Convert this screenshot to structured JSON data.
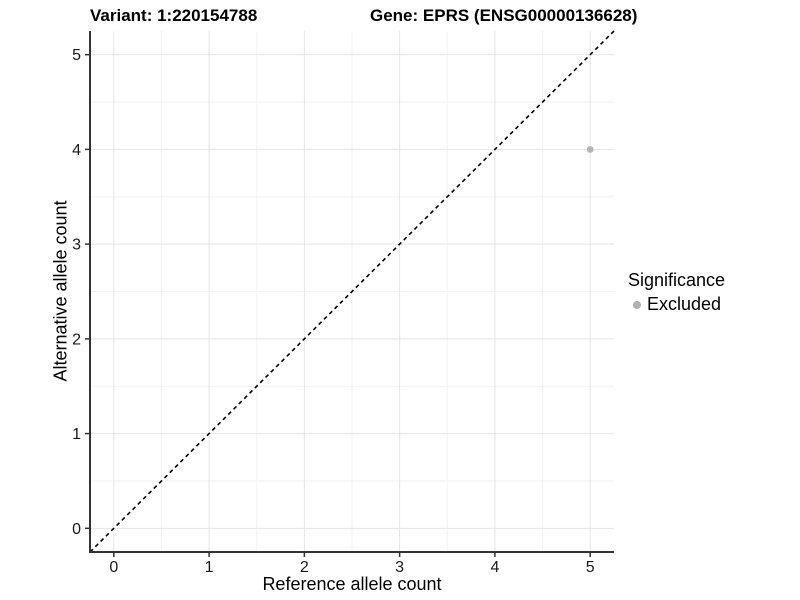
{
  "titles": {
    "variant": "Variant: 1:220154788",
    "gene": "Gene: EPRS (ENSG00000136628)"
  },
  "axes": {
    "x": {
      "label": "Reference allele count",
      "ticks": [
        0,
        1,
        2,
        3,
        4,
        5
      ]
    },
    "y": {
      "label": "Alternative allele count",
      "ticks": [
        0,
        1,
        2,
        3,
        4,
        5
      ]
    }
  },
  "legend": {
    "title": "Significance",
    "items": [
      {
        "label": "Excluded",
        "color": "#b0b0b0"
      }
    ]
  },
  "colors": {
    "background": "#ffffff",
    "grid_major": "#e5e5e5",
    "grid_minor": "#f2f2f2",
    "axis_line": "#333333",
    "tick_text": "#1a1a1a",
    "dashed_line": "#000000",
    "point": "#b5b5b5"
  },
  "chart_data": {
    "type": "scatter",
    "title": "Variant: 1:220154788   Gene: EPRS (ENSG00000136628)",
    "xlabel": "Reference allele count",
    "ylabel": "Alternative allele count",
    "xlim": [
      -0.25,
      5.25
    ],
    "ylim": [
      -0.25,
      5.25
    ],
    "x_ticks": [
      0,
      1,
      2,
      3,
      4,
      5
    ],
    "y_ticks": [
      0,
      1,
      2,
      3,
      4,
      5
    ],
    "grid_minor_x": [
      0.5,
      1.5,
      2.5,
      3.5,
      4.5
    ],
    "grid_minor_y": [
      0.5,
      1.5,
      2.5,
      3.5,
      4.5
    ],
    "grid": "on",
    "legend_position": "right",
    "series": [
      {
        "name": "Excluded",
        "color": "#b5b5b5",
        "points": [
          {
            "x": 5,
            "y": 4
          }
        ]
      }
    ],
    "reference_line": {
      "kind": "identity",
      "from": [
        -0.25,
        -0.25
      ],
      "to": [
        5.25,
        5.25
      ],
      "style": "dashed",
      "color": "#000000"
    }
  }
}
